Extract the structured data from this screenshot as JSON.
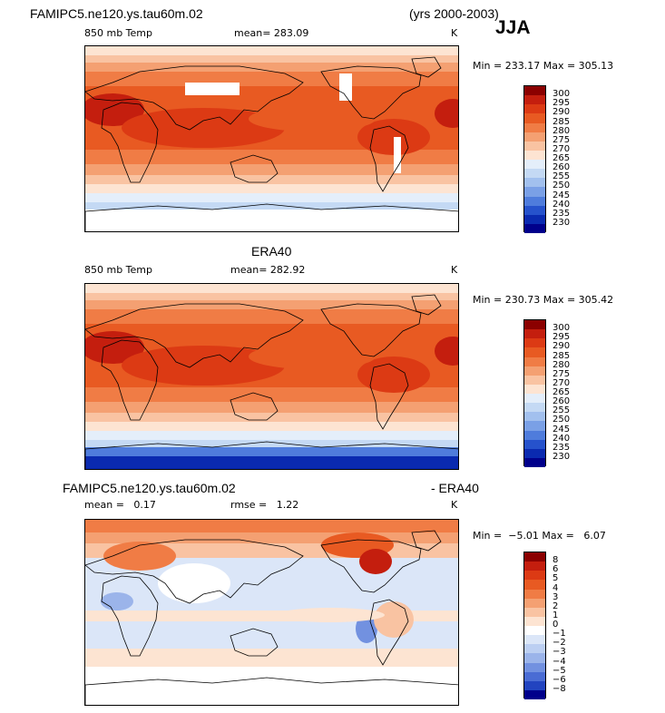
{
  "header": {
    "case_name": "FAMIPC5.ne120.ys.tau60m.02",
    "years": "(yrs 2000-2003)",
    "season": "JJA"
  },
  "panels": [
    {
      "title": "",
      "variable": "850 mb Temp",
      "stat": "mean= 283.09",
      "stat2": "",
      "units": "K",
      "minmax": "Min = 233.17 Max = 305.13",
      "colorbar": {
        "labels": [
          "300",
          "295",
          "290",
          "285",
          "280",
          "275",
          "270",
          "265",
          "260",
          "255",
          "250",
          "245",
          "240",
          "235",
          "230"
        ],
        "colors": [
          "#8b0000",
          "#c41e0e",
          "#dc3a14",
          "#e85a22",
          "#f07c45",
          "#f4a072",
          "#f9c3a2",
          "#fde4d2",
          "#e4eefa",
          "#c4d9f4",
          "#a2c0ee",
          "#7aa0e6",
          "#4f7cdc",
          "#2652cc",
          "#0a2ab0",
          "#00008b"
        ]
      },
      "map_mode": "model"
    },
    {
      "title": "ERA40",
      "variable": "850 mb Temp",
      "stat": "mean= 282.92",
      "stat2": "",
      "units": "K",
      "minmax": "Min = 230.73 Max = 305.42",
      "colorbar": {
        "labels": [
          "300",
          "295",
          "290",
          "285",
          "280",
          "275",
          "270",
          "265",
          "260",
          "255",
          "250",
          "245",
          "240",
          "235",
          "230"
        ],
        "colors": [
          "#8b0000",
          "#c41e0e",
          "#dc3a14",
          "#e85a22",
          "#f07c45",
          "#f4a072",
          "#f9c3a2",
          "#fde4d2",
          "#e4eefa",
          "#c4d9f4",
          "#a2c0ee",
          "#7aa0e6",
          "#4f7cdc",
          "#2652cc",
          "#0a2ab0",
          "#00008b"
        ]
      },
      "map_mode": "era"
    },
    {
      "title": "FAMIPC5.ne120.ys.tau60m.02",
      "title2": "- ERA40",
      "variable": "mean =   0.17",
      "stat": "rmse =   1.22",
      "units": "K",
      "minmax": "Min =  −5.01 Max =   6.07",
      "colorbar": {
        "labels": [
          "8",
          "6",
          "5",
          "4",
          "3",
          "2",
          "1",
          "0",
          "−1",
          "−2",
          "−3",
          "−4",
          "−5",
          "−6",
          "−8"
        ],
        "colors": [
          "#8b0000",
          "#c41e0e",
          "#dc3a14",
          "#e85a22",
          "#f07c45",
          "#f4a072",
          "#f9c3a2",
          "#fde4d2",
          "#ffffff",
          "#dbe6f8",
          "#bccff2",
          "#9bb4ea",
          "#7291e0",
          "#4a6cd4",
          "#2244c0",
          "#00008b"
        ]
      },
      "map_mode": "diff"
    }
  ]
}
